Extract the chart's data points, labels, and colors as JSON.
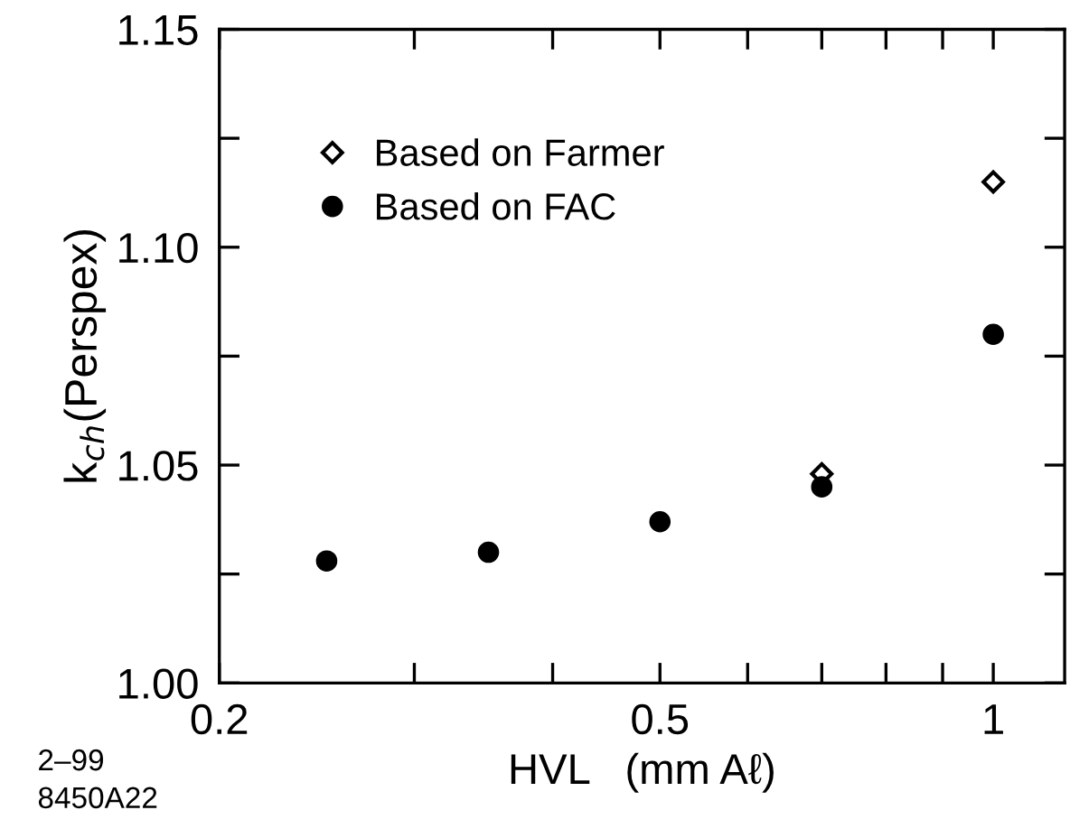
{
  "chart_data": {
    "type": "scatter",
    "xlabel": "HVL   (mm Aℓ)",
    "ylabel": "k$_{ch}$(Perspex)",
    "log": "x",
    "xlim": [
      0.2,
      1.16
    ],
    "ylim": [
      1.0,
      1.15
    ],
    "xticks": [
      0.2,
      {
        "value": 0.3,
        "label": null
      },
      {
        "value": 0.4,
        "label": null
      },
      0.5,
      {
        "value": 0.6,
        "label": null
      },
      {
        "value": 0.7,
        "label": null
      },
      {
        "value": 0.8,
        "label": null
      },
      {
        "value": 0.9,
        "label": null
      },
      1
    ],
    "yticks": [
      {
        "value": 1.0,
        "label": "1.00"
      },
      {
        "value": 1.025,
        "label": null
      },
      1.05,
      {
        "value": 1.075,
        "label": null
      },
      {
        "value": 1.1,
        "label": "1.10"
      },
      {
        "value": 1.125,
        "label": null
      },
      1.15
    ],
    "legend": "top left",
    "grid": false,
    "series": [
      {
        "name": "Based on Farmer",
        "color": "#000000",
        "marker": "diamond",
        "x": [
          0.7,
          1.0
        ],
        "values": [
          1.048,
          1.115
        ]
      },
      {
        "name": "Based on FAC",
        "color": "#000000",
        "marker": "circle",
        "x": [
          0.25,
          0.35,
          0.5,
          0.7,
          1.0
        ],
        "values": [
          1.028,
          1.03,
          1.037,
          1.045,
          1.08
        ]
      }
    ],
    "annotations": [
      "2–99",
      "8450A22"
    ]
  }
}
